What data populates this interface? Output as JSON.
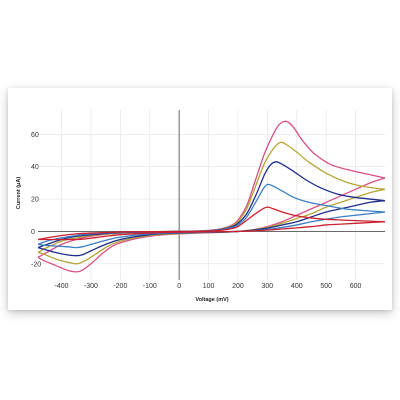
{
  "chart_data": {
    "type": "line",
    "title": "",
    "xlabel": "Voltage (mV)",
    "ylabel": "Current (μA)",
    "xlim": [
      -480,
      700
    ],
    "ylim": [
      -30,
      75
    ],
    "x_ticks": [
      -400,
      -300,
      -200,
      -100,
      0,
      100,
      200,
      300,
      400,
      500,
      600
    ],
    "y_ticks": [
      -20,
      0,
      20,
      40,
      60
    ],
    "grid": true,
    "legend": "none",
    "colors": {
      "axis": "#555555",
      "grid": "#e3e3e3"
    },
    "series": [
      {
        "color": "#d94f86",
        "forward": [
          [
            -480,
            -16
          ],
          [
            -450,
            -13
          ],
          [
            -400,
            -8
          ],
          [
            -350,
            -5
          ],
          [
            -300,
            -3
          ],
          [
            -250,
            -1.8
          ],
          [
            -200,
            -1
          ],
          [
            -100,
            -0.4
          ],
          [
            0,
            0
          ],
          [
            100,
            0.6
          ],
          [
            150,
            2
          ],
          [
            180,
            4
          ],
          [
            200,
            7
          ],
          [
            230,
            16
          ],
          [
            260,
            32
          ],
          [
            290,
            48
          ],
          [
            320,
            60
          ],
          [
            340,
            66
          ],
          [
            365,
            68
          ],
          [
            390,
            64
          ],
          [
            420,
            56
          ],
          [
            460,
            48
          ],
          [
            520,
            41
          ],
          [
            600,
            37
          ],
          [
            650,
            35
          ],
          [
            700,
            33
          ]
        ],
        "reverse": [
          [
            700,
            33
          ],
          [
            650,
            30
          ],
          [
            600,
            26
          ],
          [
            550,
            22
          ],
          [
            500,
            18
          ],
          [
            450,
            14
          ],
          [
            400,
            10
          ],
          [
            350,
            6
          ],
          [
            300,
            3
          ],
          [
            250,
            1
          ],
          [
            200,
            0
          ],
          [
            150,
            -0.5
          ],
          [
            100,
            -0.8
          ],
          [
            0,
            -1.5
          ],
          [
            -100,
            -3
          ],
          [
            -200,
            -7
          ],
          [
            -250,
            -12
          ],
          [
            -300,
            -20
          ],
          [
            -330,
            -24
          ],
          [
            -350,
            -25
          ],
          [
            -380,
            -24
          ],
          [
            -420,
            -21
          ],
          [
            -460,
            -18
          ],
          [
            -480,
            -16
          ]
        ]
      },
      {
        "color": "#b5a637",
        "forward": [
          [
            -480,
            -13
          ],
          [
            -450,
            -10
          ],
          [
            -400,
            -6
          ],
          [
            -350,
            -4
          ],
          [
            -300,
            -2.5
          ],
          [
            -200,
            -1
          ],
          [
            -100,
            -0.4
          ],
          [
            0,
            0
          ],
          [
            100,
            0.5
          ],
          [
            150,
            1.8
          ],
          [
            180,
            3.5
          ],
          [
            200,
            6
          ],
          [
            230,
            14
          ],
          [
            260,
            28
          ],
          [
            290,
            42
          ],
          [
            320,
            51
          ],
          [
            345,
            55
          ],
          [
            370,
            53
          ],
          [
            400,
            49
          ],
          [
            440,
            43
          ],
          [
            500,
            36
          ],
          [
            560,
            31
          ],
          [
            620,
            28
          ],
          [
            700,
            26
          ]
        ],
        "reverse": [
          [
            700,
            26
          ],
          [
            650,
            24
          ],
          [
            600,
            21
          ],
          [
            550,
            18
          ],
          [
            500,
            15
          ],
          [
            450,
            11
          ],
          [
            400,
            8
          ],
          [
            350,
            5
          ],
          [
            300,
            2.5
          ],
          [
            250,
            1
          ],
          [
            200,
            0
          ],
          [
            150,
            -0.5
          ],
          [
            100,
            -0.7
          ],
          [
            0,
            -1.3
          ],
          [
            -100,
            -2.5
          ],
          [
            -200,
            -6
          ],
          [
            -250,
            -10
          ],
          [
            -300,
            -16
          ],
          [
            -330,
            -19
          ],
          [
            -350,
            -20
          ],
          [
            -380,
            -19
          ],
          [
            -420,
            -17
          ],
          [
            -460,
            -14
          ],
          [
            -480,
            -13
          ]
        ]
      },
      {
        "color": "#1f2d8a",
        "forward": [
          [
            -480,
            -10
          ],
          [
            -450,
            -8
          ],
          [
            -400,
            -5
          ],
          [
            -350,
            -3
          ],
          [
            -300,
            -2
          ],
          [
            -200,
            -0.8
          ],
          [
            -100,
            -0.3
          ],
          [
            0,
            0
          ],
          [
            100,
            0.4
          ],
          [
            150,
            1.5
          ],
          [
            180,
            3
          ],
          [
            200,
            5
          ],
          [
            230,
            11
          ],
          [
            260,
            22
          ],
          [
            290,
            35
          ],
          [
            310,
            41
          ],
          [
            330,
            43
          ],
          [
            355,
            41
          ],
          [
            390,
            37
          ],
          [
            430,
            32
          ],
          [
            480,
            27
          ],
          [
            540,
            23
          ],
          [
            600,
            21
          ],
          [
            700,
            19
          ]
        ],
        "reverse": [
          [
            700,
            19
          ],
          [
            650,
            18
          ],
          [
            600,
            16
          ],
          [
            550,
            14
          ],
          [
            500,
            12
          ],
          [
            450,
            9
          ],
          [
            400,
            6
          ],
          [
            350,
            4
          ],
          [
            300,
            2
          ],
          [
            250,
            0.8
          ],
          [
            200,
            0
          ],
          [
            150,
            -0.4
          ],
          [
            100,
            -0.6
          ],
          [
            0,
            -1
          ],
          [
            -100,
            -2
          ],
          [
            -200,
            -5
          ],
          [
            -250,
            -8
          ],
          [
            -300,
            -12
          ],
          [
            -330,
            -14.5
          ],
          [
            -350,
            -15
          ],
          [
            -380,
            -14.5
          ],
          [
            -420,
            -13
          ],
          [
            -460,
            -11
          ],
          [
            -480,
            -10
          ]
        ]
      },
      {
        "color": "#3b7fc4",
        "forward": [
          [
            -480,
            -8
          ],
          [
            -450,
            -6
          ],
          [
            -400,
            -4
          ],
          [
            -350,
            -2.5
          ],
          [
            -300,
            -1.5
          ],
          [
            -200,
            -0.6
          ],
          [
            -100,
            -0.2
          ],
          [
            0,
            0
          ],
          [
            100,
            0.3
          ],
          [
            150,
            1.2
          ],
          [
            180,
            2.5
          ],
          [
            200,
            4
          ],
          [
            230,
            9
          ],
          [
            260,
            18
          ],
          [
            285,
            26
          ],
          [
            300,
            29
          ],
          [
            320,
            28
          ],
          [
            350,
            25
          ],
          [
            390,
            21
          ],
          [
            440,
            18
          ],
          [
            500,
            16
          ],
          [
            560,
            14
          ],
          [
            620,
            13
          ],
          [
            700,
            12
          ]
        ],
        "reverse": [
          [
            700,
            12
          ],
          [
            650,
            11
          ],
          [
            600,
            10
          ],
          [
            550,
            9
          ],
          [
            500,
            7.5
          ],
          [
            450,
            6
          ],
          [
            400,
            4
          ],
          [
            350,
            2.5
          ],
          [
            300,
            1.2
          ],
          [
            250,
            0.5
          ],
          [
            200,
            0
          ],
          [
            150,
            -0.3
          ],
          [
            100,
            -0.5
          ],
          [
            0,
            -0.8
          ],
          [
            -100,
            -1.5
          ],
          [
            -200,
            -3.5
          ],
          [
            -250,
            -5.5
          ],
          [
            -300,
            -8
          ],
          [
            -330,
            -9.5
          ],
          [
            -350,
            -10
          ],
          [
            -380,
            -9.5
          ],
          [
            -420,
            -9
          ],
          [
            -460,
            -8.5
          ],
          [
            -480,
            -8
          ]
        ]
      },
      {
        "color": "#cc1f2f",
        "forward": [
          [
            -480,
            -5
          ],
          [
            -450,
            -4
          ],
          [
            -400,
            -2.5
          ],
          [
            -350,
            -1.5
          ],
          [
            -300,
            -1
          ],
          [
            -200,
            -0.4
          ],
          [
            -100,
            -0.1
          ],
          [
            0,
            0
          ],
          [
            100,
            0.2
          ],
          [
            150,
            0.8
          ],
          [
            180,
            1.8
          ],
          [
            200,
            3
          ],
          [
            230,
            7
          ],
          [
            260,
            11
          ],
          [
            285,
            14
          ],
          [
            300,
            15
          ],
          [
            320,
            14
          ],
          [
            350,
            12
          ],
          [
            390,
            10
          ],
          [
            440,
            8.5
          ],
          [
            500,
            7.5
          ],
          [
            560,
            7
          ],
          [
            620,
            6.5
          ],
          [
            700,
            6
          ]
        ],
        "reverse": [
          [
            700,
            6
          ],
          [
            650,
            5.5
          ],
          [
            600,
            5
          ],
          [
            550,
            4.5
          ],
          [
            500,
            4
          ],
          [
            450,
            3
          ],
          [
            400,
            2.2
          ],
          [
            350,
            1.5
          ],
          [
            300,
            0.8
          ],
          [
            250,
            0.3
          ],
          [
            200,
            0
          ],
          [
            150,
            -0.2
          ],
          [
            100,
            -0.3
          ],
          [
            0,
            -0.5
          ],
          [
            -100,
            -1
          ],
          [
            -200,
            -2
          ],
          [
            -250,
            -3
          ],
          [
            -300,
            -4.2
          ],
          [
            -330,
            -4.8
          ],
          [
            -350,
            -5
          ],
          [
            -380,
            -5
          ],
          [
            -420,
            -5
          ],
          [
            -460,
            -5
          ],
          [
            -480,
            -5
          ]
        ]
      }
    ]
  }
}
